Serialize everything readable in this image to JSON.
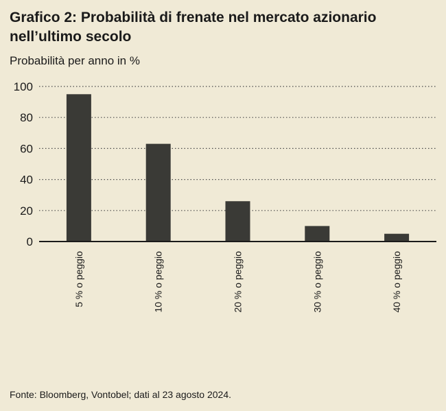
{
  "chart_data": {
    "type": "bar",
    "title": "Grafico 2: Probabilità di frenate nel mercato azionario nell’ultimo secolo",
    "ylabel": "Probabilità per anno in %",
    "xlabel": "",
    "categories": [
      "5 % o peggio",
      "10 % o peggio",
      "20 % o peggio",
      "30 % o peggio",
      "40 % o peggio"
    ],
    "values": [
      95,
      63,
      26,
      10,
      5
    ],
    "ylim": [
      0,
      100
    ],
    "yticks": [
      0,
      20,
      40,
      60,
      80,
      100
    ],
    "grid": true,
    "bar_color": "#3a3a36",
    "background_color": "#f0ead6"
  },
  "source": "Fonte: Bloomberg, Vontobel; dati al 23 agosto 2024."
}
